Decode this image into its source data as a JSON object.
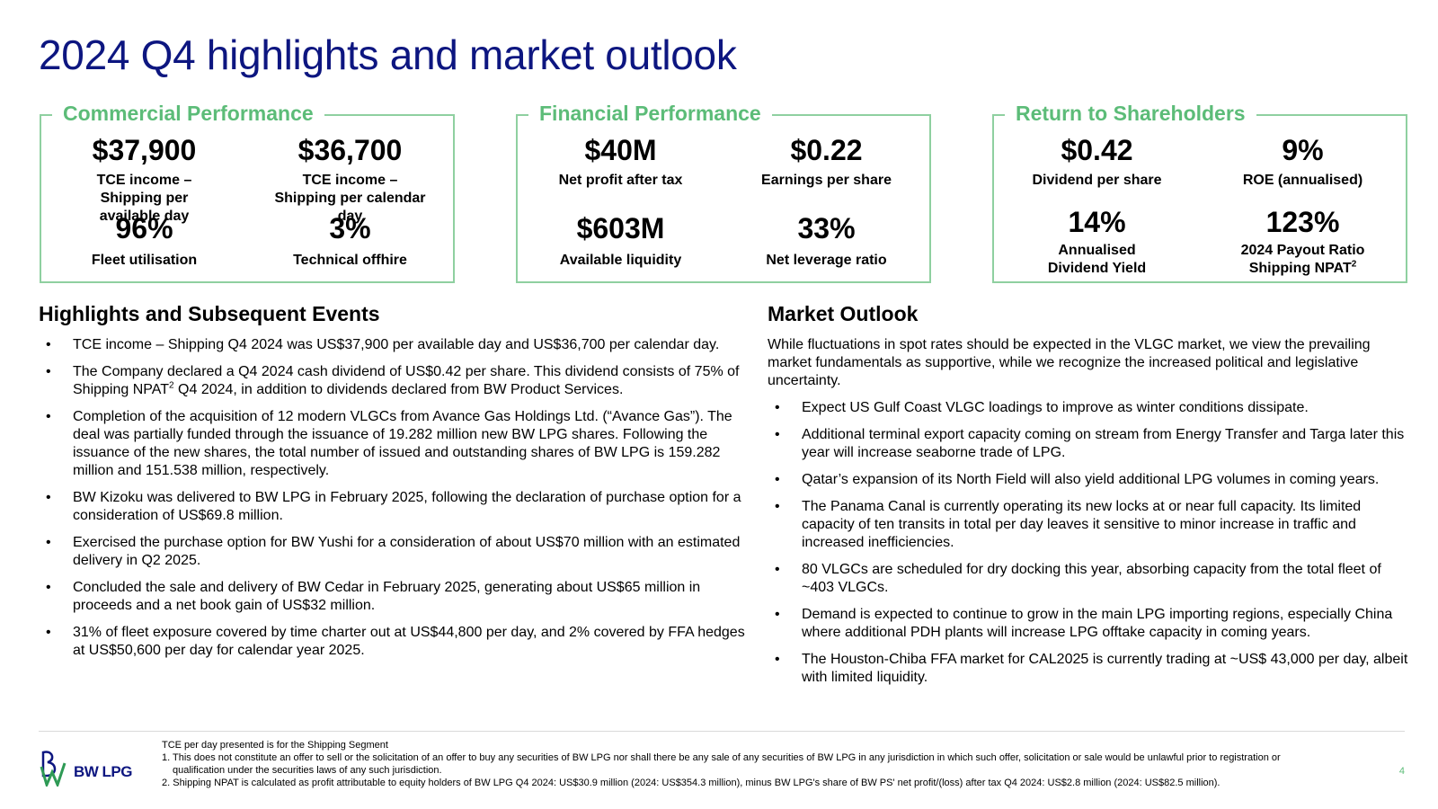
{
  "title": "2024 Q4 highlights and market outlook",
  "boxes": {
    "commercial": {
      "title": "Commercial Performance",
      "kpis": [
        {
          "value": "$37,900",
          "label": "TCE income – Shipping per available day"
        },
        {
          "value": "$36,700",
          "label": "TCE income – Shipping per calendar day"
        },
        {
          "value": "96%",
          "label": "Fleet utilisation"
        },
        {
          "value": "3%",
          "label": "Technical offhire"
        }
      ]
    },
    "financial": {
      "title": "Financial Performance",
      "kpis": [
        {
          "value": "$40M",
          "label": "Net profit after tax"
        },
        {
          "value": "$0.22",
          "label": "Earnings per share"
        },
        {
          "value": "$603M",
          "label": "Available liquidity"
        },
        {
          "value": "33%",
          "label": "Net leverage ratio"
        }
      ]
    },
    "shareholders": {
      "title": "Return to Shareholders",
      "kpis": [
        {
          "value": "$0.42",
          "label": "Dividend per share"
        },
        {
          "value": "9%",
          "label": "ROE (annualised)"
        },
        {
          "value": "14%",
          "label_line1": "Annualised",
          "label_line2": "Dividend Yield"
        },
        {
          "value": "123%",
          "label_line1": "2024 Payout Ratio",
          "label_line2": "Shipping NPAT",
          "label_sup": "2"
        }
      ]
    }
  },
  "highlights": {
    "heading": "Highlights and Subsequent Events",
    "items": [
      "TCE income – Shipping Q4 2024 was US$37,900 per available day and US$36,700 per calendar day.",
      {
        "before": "The Company declared a Q4 2024 cash dividend of US$0.42 per share. This dividend consists of 75% of Shipping NPAT",
        "sup": "2",
        "after": " Q4 2024, in addition to dividends declared from BW Product Services."
      },
      "Completion of the acquisition of 12 modern VLGCs from Avance Gas Holdings Ltd. (“Avance Gas”). The deal was partially funded through the issuance of 19.282 million new BW LPG shares. Following the issuance of the new shares, the total number of issued and outstanding shares of BW LPG is 159.282 million and 151.538 million, respectively.",
      "BW Kizoku was delivered to BW LPG in February 2025, following the declaration of purchase option for a consideration of US$69.8 million.",
      "Exercised the purchase option for BW Yushi for a consideration of about US$70 million with an estimated delivery in Q2 2025.",
      "Concluded the sale and delivery of BW Cedar in February 2025, generating about US$65 million in proceeds and a net book gain of US$32 million.",
      "31% of fleet exposure covered by time charter out at US$44,800 per day, and 2% covered by FFA hedges at US$50,600 per day for calendar year 2025."
    ]
  },
  "outlook": {
    "heading": "Market Outlook",
    "intro": "While fluctuations in spot rates should be expected in the VLGC market, we view the prevailing market fundamentals as supportive, while we recognize the increased political and legislative uncertainty.",
    "items": [
      "Expect US Gulf Coast VLGC loadings to improve as winter conditions dissipate.",
      "Additional terminal export capacity coming on stream from Energy Transfer and Targa later this year will increase seaborne trade of LPG.",
      "Qatar’s expansion of its North Field will also yield additional LPG volumes in coming years.",
      "The Panama Canal is currently operating its new locks at or near full capacity. Its limited capacity of ten transits in total per day leaves it sensitive to minor increase in traffic and increased inefficiencies.",
      "80 VLGCs are scheduled for dry docking this year, absorbing capacity from the total fleet of ~403 VLGCs.",
      "Demand is expected to continue to grow in the main LPG importing regions, especially China where additional PDH plants will increase LPG offtake capacity in coming years.",
      "The Houston-Chiba FFA market for CAL2025 is currently trading at ~US$ 43,000 per day, albeit with limited liquidity."
    ]
  },
  "footer": {
    "logo_text": "BW LPG",
    "note0": "TCE per day presented is for the Shipping Segment",
    "note1_a": "1. This does not constitute an offer to sell or the solicitation of an offer to buy any securities of BW LPG nor shall there be any sale of any securities of BW LPG in any jurisdiction in which such offer, solicitation or sale would be unlawful prior to registration or",
    "note1_b": "qualification under the securities laws of any such jurisdiction.",
    "note2": "2. Shipping NPAT is calculated as profit attributable to equity holders of BW LPG Q4 2024: US$30.9 million (2024: US$354.3 million), minus BW LPG's share of BW PS' net profit/(loss) after tax Q4 2024: US$2.8 million (2024: US$82.5 million).",
    "page_number": "4"
  },
  "colors": {
    "title": "#0d1680",
    "accent_green": "#5cbc78",
    "box_border": "#8fd0a0"
  },
  "icons": [
    "bw-lpg-logo-icon"
  ]
}
